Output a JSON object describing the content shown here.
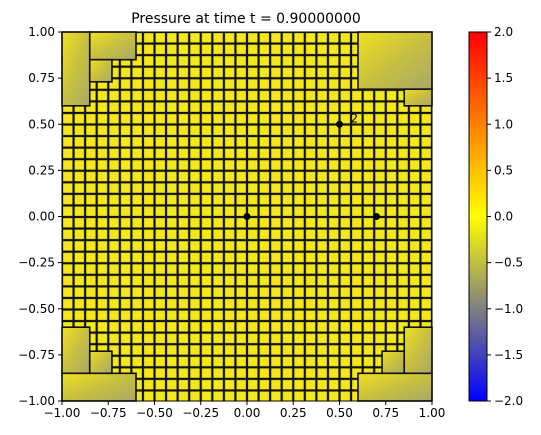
{
  "chart_data": [
    {
      "type": "heatmap",
      "title": "Pressure at time t =      0.90000000",
      "xlabel": "",
      "ylabel": "",
      "xlim": [
        -1.0,
        1.0
      ],
      "ylim": [
        -1.0,
        1.0
      ],
      "xticks": [
        "−1.00",
        "−0.75",
        "−0.50",
        "−0.25",
        "0.00",
        "0.25",
        "0.50",
        "0.75",
        "1.00"
      ],
      "yticks": [
        "−1.00",
        "−0.75",
        "−0.50",
        "−0.25",
        "0.00",
        "0.25",
        "0.50",
        "0.75",
        "1.00"
      ],
      "grid": false,
      "description_values": {
        "mesh": "adaptively refined quadrilateral mesh, fine cells (~0.0625 wide) over most of the domain, coarse cells near the four corners",
        "pressure_field": "approximately 0.0 (yellow) across fine region; corners graded from about 0.0 to -0.5"
      },
      "corner_coarse_cells": [
        {
          "x0": -1.0,
          "x1": -0.85,
          "y0": 0.6,
          "y1": 1.0
        },
        {
          "x0": -0.85,
          "x1": -0.6,
          "y0": 0.85,
          "y1": 1.0
        },
        {
          "x0": -0.85,
          "x1": -0.73,
          "y0": 0.73,
          "y1": 0.85
        },
        {
          "x0": 0.6,
          "x1": 1.0,
          "y0": 0.69,
          "y1": 1.0
        },
        {
          "x0": 0.85,
          "x1": 1.0,
          "y0": 0.6,
          "y1": 0.69
        },
        {
          "x0": -1.0,
          "x1": -0.85,
          "y0": -0.85,
          "y1": -0.6
        },
        {
          "x0": -0.85,
          "x1": -0.73,
          "y0": -0.85,
          "y1": -0.73
        },
        {
          "x0": -1.0,
          "x1": -0.6,
          "y0": -1.0,
          "y1": -0.85
        },
        {
          "x0": 0.73,
          "x1": 0.85,
          "y0": -0.85,
          "y1": -0.73
        },
        {
          "x0": 0.85,
          "x1": 1.0,
          "y0": -0.85,
          "y1": -0.6
        },
        {
          "x0": 0.6,
          "x1": 1.0,
          "y0": -1.0,
          "y1": -0.85
        }
      ],
      "markers": [
        {
          "label": "",
          "x": 0.0,
          "y": 0.0
        },
        {
          "label": "",
          "x": 0.5,
          "y": 0.5
        },
        {
          "label": "2",
          "x": 0.58,
          "y": 0.53
        },
        {
          "label": "",
          "x": 0.7,
          "y": 0.0
        }
      ]
    },
    {
      "type": "colorbar",
      "range": [
        -2.0,
        2.0
      ],
      "ticks": [
        "2.0",
        "1.5",
        "1.0",
        "0.5",
        "0.0",
        "−0.5",
        "−1.0",
        "−1.5",
        "−2.0"
      ],
      "tick_values": [
        2.0,
        1.5,
        1.0,
        0.5,
        0.0,
        -0.5,
        -1.0,
        -1.5,
        -2.0
      ],
      "colormap_stops": [
        {
          "value": -2.0,
          "color": "#0000ff"
        },
        {
          "value": -1.0,
          "color": "#808080"
        },
        {
          "value": 0.0,
          "color": "#ffff00"
        },
        {
          "value": 1.0,
          "color": "#ff8000"
        },
        {
          "value": 2.0,
          "color": "#ff0000"
        }
      ]
    }
  ]
}
